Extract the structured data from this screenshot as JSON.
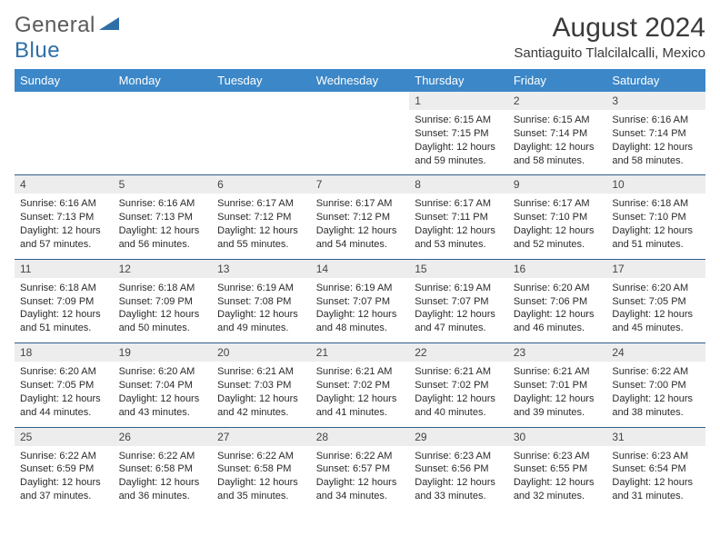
{
  "logo": {
    "text1": "General",
    "text2": "Blue"
  },
  "title": "August 2024",
  "location": "Santiaguito Tlalcilalcalli, Mexico",
  "colors": {
    "header_bg": "#3b87c8",
    "header_text": "#ffffff",
    "daynum_bg": "#ededed",
    "rule": "#2f5f8a",
    "logo_gray": "#5a5a5a",
    "logo_blue": "#2f6fa8"
  },
  "weekdays": [
    "Sunday",
    "Monday",
    "Tuesday",
    "Wednesday",
    "Thursday",
    "Friday",
    "Saturday"
  ],
  "weeks": [
    [
      {
        "empty": true
      },
      {
        "empty": true
      },
      {
        "empty": true
      },
      {
        "empty": true
      },
      {
        "n": "1",
        "sunrise": "6:15 AM",
        "sunset": "7:15 PM",
        "daylight": "12 hours and 59 minutes."
      },
      {
        "n": "2",
        "sunrise": "6:15 AM",
        "sunset": "7:14 PM",
        "daylight": "12 hours and 58 minutes."
      },
      {
        "n": "3",
        "sunrise": "6:16 AM",
        "sunset": "7:14 PM",
        "daylight": "12 hours and 58 minutes."
      }
    ],
    [
      {
        "n": "4",
        "sunrise": "6:16 AM",
        "sunset": "7:13 PM",
        "daylight": "12 hours and 57 minutes."
      },
      {
        "n": "5",
        "sunrise": "6:16 AM",
        "sunset": "7:13 PM",
        "daylight": "12 hours and 56 minutes."
      },
      {
        "n": "6",
        "sunrise": "6:17 AM",
        "sunset": "7:12 PM",
        "daylight": "12 hours and 55 minutes."
      },
      {
        "n": "7",
        "sunrise": "6:17 AM",
        "sunset": "7:12 PM",
        "daylight": "12 hours and 54 minutes."
      },
      {
        "n": "8",
        "sunrise": "6:17 AM",
        "sunset": "7:11 PM",
        "daylight": "12 hours and 53 minutes."
      },
      {
        "n": "9",
        "sunrise": "6:17 AM",
        "sunset": "7:10 PM",
        "daylight": "12 hours and 52 minutes."
      },
      {
        "n": "10",
        "sunrise": "6:18 AM",
        "sunset": "7:10 PM",
        "daylight": "12 hours and 51 minutes."
      }
    ],
    [
      {
        "n": "11",
        "sunrise": "6:18 AM",
        "sunset": "7:09 PM",
        "daylight": "12 hours and 51 minutes."
      },
      {
        "n": "12",
        "sunrise": "6:18 AM",
        "sunset": "7:09 PM",
        "daylight": "12 hours and 50 minutes."
      },
      {
        "n": "13",
        "sunrise": "6:19 AM",
        "sunset": "7:08 PM",
        "daylight": "12 hours and 49 minutes."
      },
      {
        "n": "14",
        "sunrise": "6:19 AM",
        "sunset": "7:07 PM",
        "daylight": "12 hours and 48 minutes."
      },
      {
        "n": "15",
        "sunrise": "6:19 AM",
        "sunset": "7:07 PM",
        "daylight": "12 hours and 47 minutes."
      },
      {
        "n": "16",
        "sunrise": "6:20 AM",
        "sunset": "7:06 PM",
        "daylight": "12 hours and 46 minutes."
      },
      {
        "n": "17",
        "sunrise": "6:20 AM",
        "sunset": "7:05 PM",
        "daylight": "12 hours and 45 minutes."
      }
    ],
    [
      {
        "n": "18",
        "sunrise": "6:20 AM",
        "sunset": "7:05 PM",
        "daylight": "12 hours and 44 minutes."
      },
      {
        "n": "19",
        "sunrise": "6:20 AM",
        "sunset": "7:04 PM",
        "daylight": "12 hours and 43 minutes."
      },
      {
        "n": "20",
        "sunrise": "6:21 AM",
        "sunset": "7:03 PM",
        "daylight": "12 hours and 42 minutes."
      },
      {
        "n": "21",
        "sunrise": "6:21 AM",
        "sunset": "7:02 PM",
        "daylight": "12 hours and 41 minutes."
      },
      {
        "n": "22",
        "sunrise": "6:21 AM",
        "sunset": "7:02 PM",
        "daylight": "12 hours and 40 minutes."
      },
      {
        "n": "23",
        "sunrise": "6:21 AM",
        "sunset": "7:01 PM",
        "daylight": "12 hours and 39 minutes."
      },
      {
        "n": "24",
        "sunrise": "6:22 AM",
        "sunset": "7:00 PM",
        "daylight": "12 hours and 38 minutes."
      }
    ],
    [
      {
        "n": "25",
        "sunrise": "6:22 AM",
        "sunset": "6:59 PM",
        "daylight": "12 hours and 37 minutes."
      },
      {
        "n": "26",
        "sunrise": "6:22 AM",
        "sunset": "6:58 PM",
        "daylight": "12 hours and 36 minutes."
      },
      {
        "n": "27",
        "sunrise": "6:22 AM",
        "sunset": "6:58 PM",
        "daylight": "12 hours and 35 minutes."
      },
      {
        "n": "28",
        "sunrise": "6:22 AM",
        "sunset": "6:57 PM",
        "daylight": "12 hours and 34 minutes."
      },
      {
        "n": "29",
        "sunrise": "6:23 AM",
        "sunset": "6:56 PM",
        "daylight": "12 hours and 33 minutes."
      },
      {
        "n": "30",
        "sunrise": "6:23 AM",
        "sunset": "6:55 PM",
        "daylight": "12 hours and 32 minutes."
      },
      {
        "n": "31",
        "sunrise": "6:23 AM",
        "sunset": "6:54 PM",
        "daylight": "12 hours and 31 minutes."
      }
    ]
  ],
  "labels": {
    "sunrise": "Sunrise: ",
    "sunset": "Sunset: ",
    "daylight": "Daylight: "
  }
}
